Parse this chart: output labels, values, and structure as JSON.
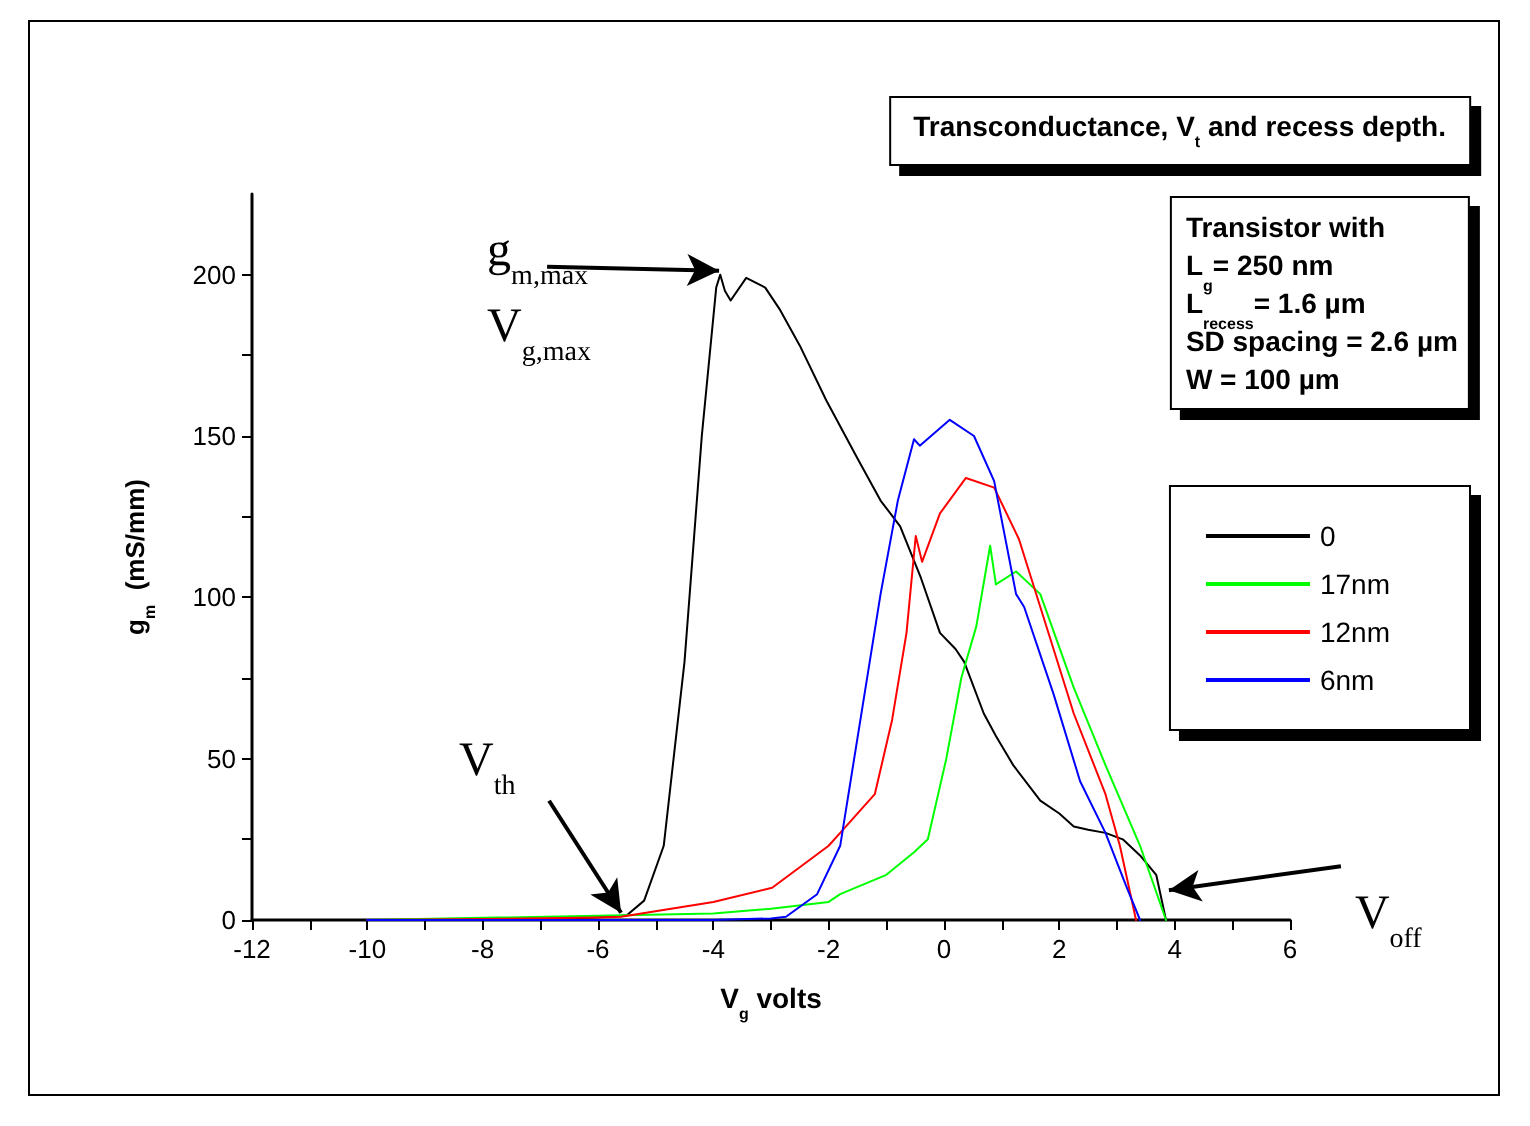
{
  "chart_data": {
    "type": "line",
    "title": "Transconductance, V$_{t}$ and recess depth.",
    "xlabel": "V$_{g}$ volts",
    "ylabel": "g$_{m}$  (mS/mm)",
    "xlim": [
      -12,
      6
    ],
    "xticks": [
      -12,
      {
        "value": -11,
        "label": null
      },
      -10,
      {
        "value": -9,
        "label": null
      },
      -8,
      {
        "value": -7,
        "label": null
      },
      -6,
      {
        "value": -5,
        "label": null
      },
      -4,
      {
        "value": -3,
        "label": null
      },
      -2,
      {
        "value": -1,
        "label": null
      },
      0,
      {
        "value": 1,
        "label": null
      },
      2,
      {
        "value": 3,
        "label": null
      },
      4,
      {
        "value": 5,
        "label": null
      },
      6
    ],
    "ylim": [
      0,
      225
    ],
    "yticks": [
      0,
      {
        "value": 25,
        "label": null
      },
      50,
      {
        "value": 75,
        "label": null
      },
      100,
      {
        "value": 125,
        "label": null
      },
      150,
      {
        "value": 175,
        "label": null
      },
      200
    ],
    "grid": false,
    "legend": "right",
    "marker": "none",
    "line_style": "solid",
    "series": [
      {
        "name": "0",
        "color": "#000000",
        "x": [
          -10,
          -8,
          -6.5,
          -5.8,
          -5.5,
          -5.2,
          -4.86,
          -4.5,
          -4.2,
          -3.95,
          -3.88,
          -3.8,
          -3.7,
          -3.43,
          -3.1,
          -2.84,
          -2.5,
          -2.04,
          -1.5,
          -1.1,
          -0.76,
          -0.4,
          -0.07,
          0.2,
          0.35,
          0.69,
          0.9,
          1.2,
          1.67,
          2.0,
          2.25,
          2.5,
          2.8,
          3.1,
          3.4,
          3.68,
          3.85
        ],
        "values": [
          0,
          0,
          0.5,
          1,
          1.5,
          6,
          23,
          80,
          150,
          196,
          200,
          195,
          192,
          199,
          196,
          189,
          178,
          161,
          143,
          130,
          122,
          106,
          89,
          84,
          80,
          64,
          57,
          48,
          37,
          33,
          29,
          28,
          27,
          25,
          20,
          14,
          0
        ]
      },
      {
        "name": "17nm",
        "color": "#00ff00",
        "x": [
          -10,
          -4,
          -3,
          -2,
          -1.8,
          -1,
          -0.52,
          -0.28,
          0.04,
          0.3,
          0.56,
          0.8,
          0.9,
          1.25,
          1.67,
          2.25,
          2.8,
          3.4,
          3.85
        ],
        "values": [
          0,
          2,
          3.5,
          5.6,
          8,
          14,
          21,
          25,
          50,
          75,
          91,
          116,
          104,
          108,
          101,
          72,
          48,
          23,
          0
        ]
      },
      {
        "name": "12nm",
        "color": "#ff0000",
        "x": [
          -10,
          -8,
          -6,
          -5.6,
          -4,
          -2.98,
          -2.0,
          -1.8,
          -1.2,
          -0.9,
          -0.65,
          -0.49,
          -0.38,
          -0.07,
          0.38,
          0.87,
          1.3,
          1.67,
          2.25,
          2.8,
          3.05,
          3.33
        ],
        "values": [
          0,
          0.3,
          0.8,
          1,
          5.6,
          10,
          23,
          27,
          39,
          62,
          89,
          119,
          111,
          126,
          137,
          134,
          118,
          97,
          64,
          39,
          23,
          0
        ]
      },
      {
        "name": "6nm",
        "color": "#0000ff",
        "x": [
          -10,
          -8,
          -6,
          -4,
          -3,
          -2.74,
          -2.2,
          -1.8,
          -1.1,
          -0.8,
          -0.52,
          -0.42,
          0.1,
          0.52,
          0.87,
          1.25,
          1.39,
          1.9,
          2.36,
          2.8,
          3.16,
          3.4
        ],
        "values": [
          0,
          0,
          0,
          0,
          0.5,
          1,
          8,
          23,
          101,
          130,
          149,
          147,
          155,
          150,
          136,
          101,
          97,
          70,
          43,
          27,
          10.5,
          0
        ]
      }
    ],
    "annotations": [
      {
        "text": "g$_{m,max}$",
        "x": -3.9,
        "y": 200
      },
      "V$_{g,max}$",
      {
        "text": "V$_{th}$",
        "x": -5.6,
        "y": 1
      },
      {
        "text": "V$_{off}$",
        "x": 3.9,
        "y": 8
      },
      "Transistor with",
      "L$_{g}$= 250 nm",
      "L$_{recess}$= 1.6 µm",
      "SD spacing = 2.6 µm",
      "W = 100 µm"
    ]
  }
}
